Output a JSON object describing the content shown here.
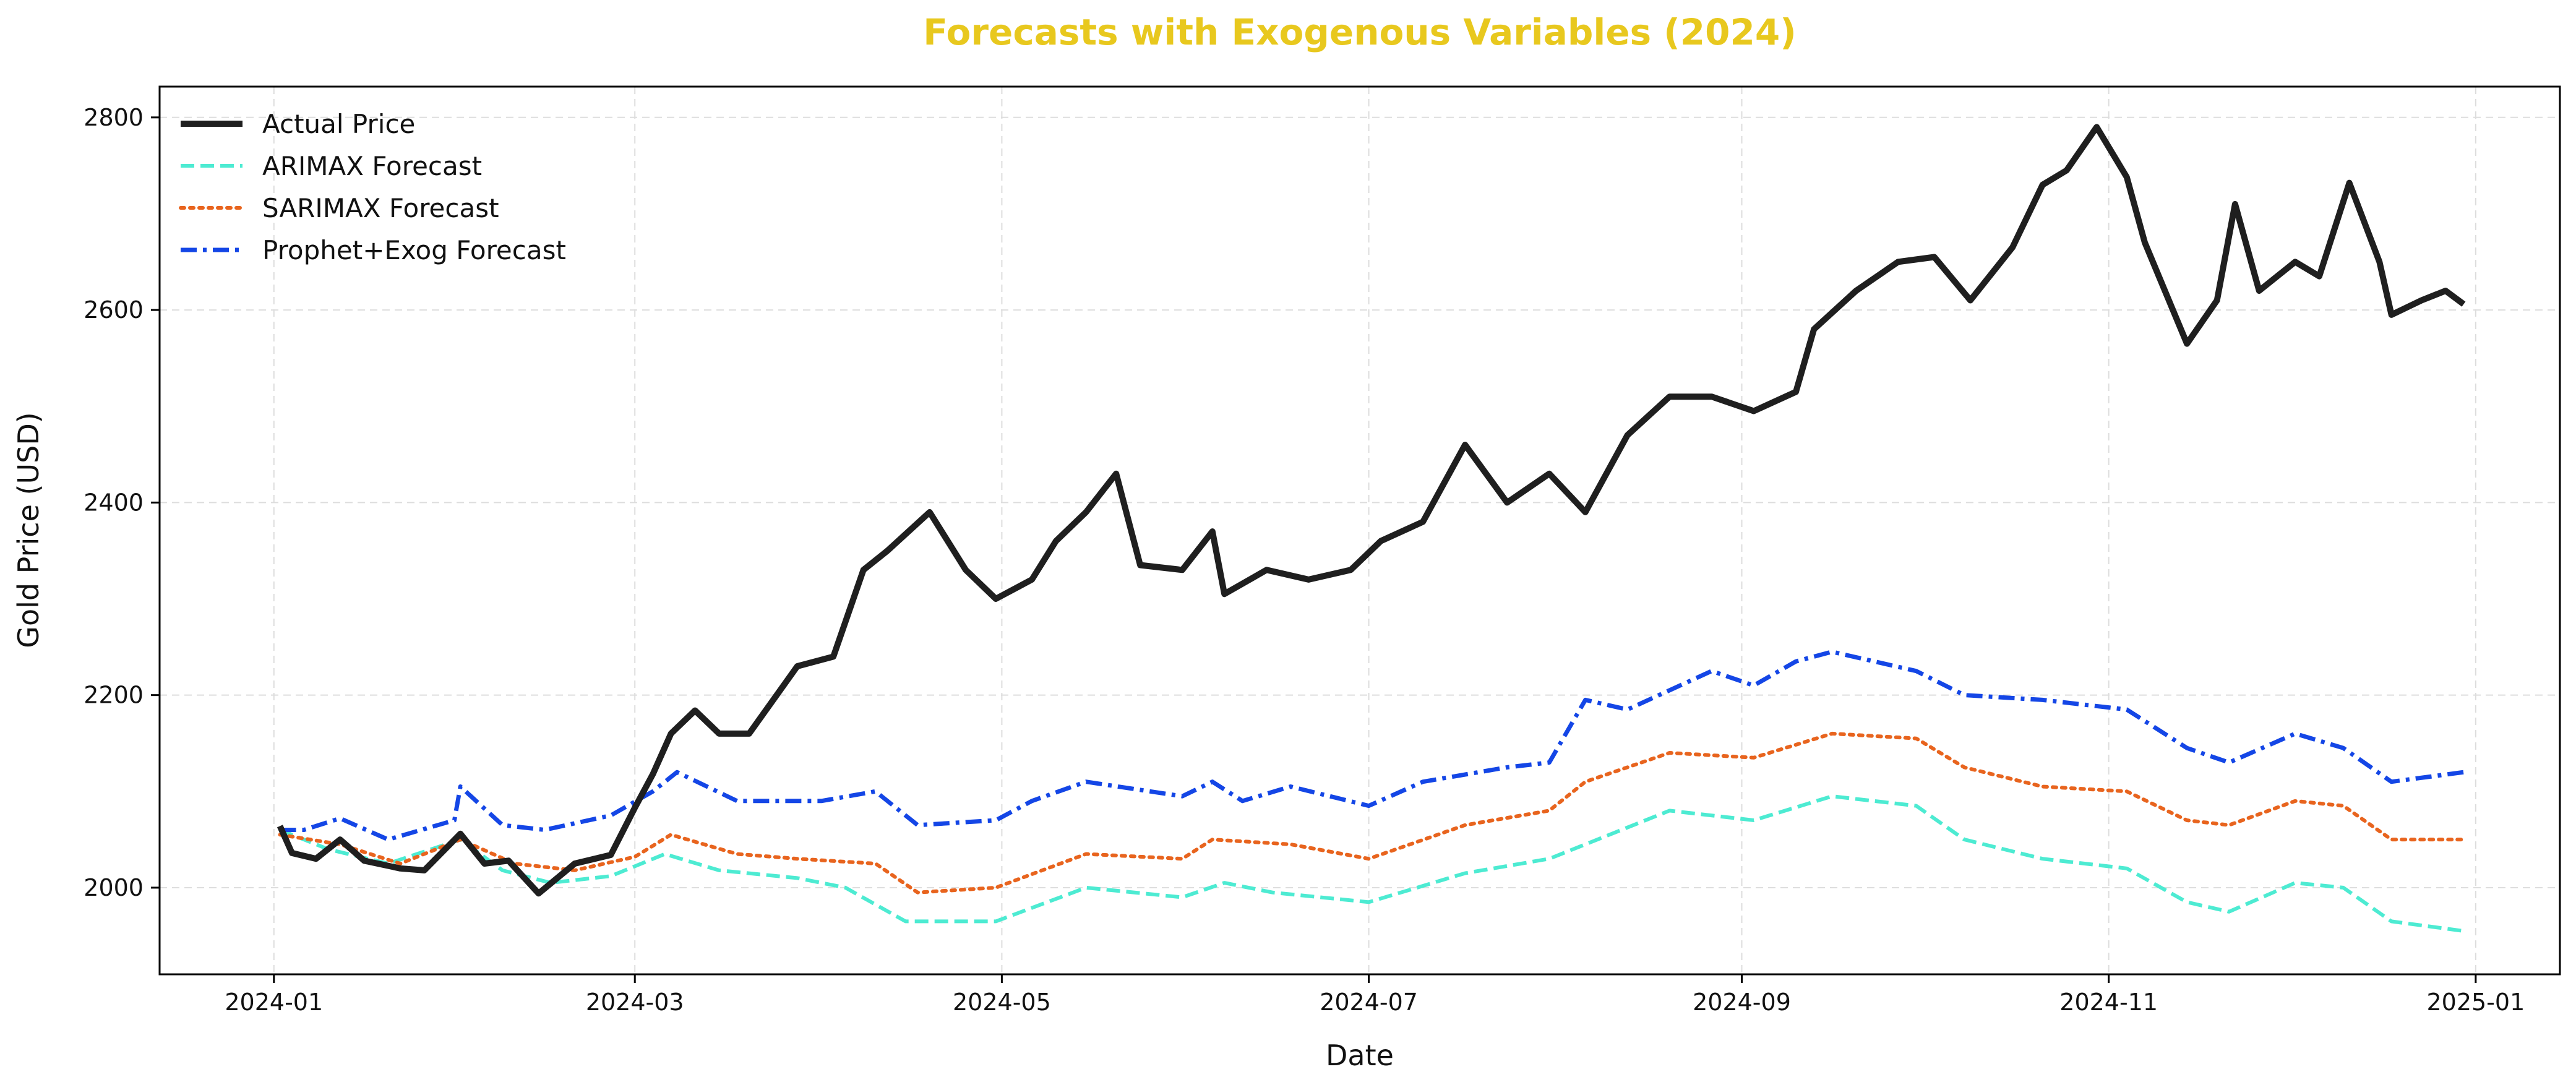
{
  "chart_data": {
    "type": "line",
    "title": "Forecasts with Exogenous Variables (2024)",
    "title_color": "#E8C81E",
    "xlabel": "Date",
    "ylabel": "Gold Price (USD)",
    "x_ticks": [
      "2024-01",
      "2024-03",
      "2024-05",
      "2024-07",
      "2024-09",
      "2024-11",
      "2025-01"
    ],
    "x_range": [
      "2023-12-13",
      "2025-01-15"
    ],
    "y_ticks": [
      2000,
      2200,
      2400,
      2600,
      2800
    ],
    "ylim": [
      1910,
      2832
    ],
    "grid": true,
    "legend_position": "top-left",
    "series": [
      {
        "name": "Actual Price",
        "color": "#1F1F1F",
        "style": "solid",
        "points": [
          [
            "2024-01-02",
            2064
          ],
          [
            "2024-01-04",
            2036
          ],
          [
            "2024-01-08",
            2030
          ],
          [
            "2024-01-12",
            2050
          ],
          [
            "2024-01-16",
            2028
          ],
          [
            "2024-01-22",
            2020
          ],
          [
            "2024-01-26",
            2018
          ],
          [
            "2024-02-01",
            2056
          ],
          [
            "2024-02-05",
            2025
          ],
          [
            "2024-02-09",
            2028
          ],
          [
            "2024-02-14",
            1994
          ],
          [
            "2024-02-20",
            2025
          ],
          [
            "2024-02-26",
            2034
          ],
          [
            "2024-03-01",
            2083
          ],
          [
            "2024-03-04",
            2118
          ],
          [
            "2024-03-07",
            2160
          ],
          [
            "2024-03-11",
            2184
          ],
          [
            "2024-03-15",
            2160
          ],
          [
            "2024-03-20",
            2160
          ],
          [
            "2024-03-28",
            2230
          ],
          [
            "2024-04-03",
            2240
          ],
          [
            "2024-04-08",
            2330
          ],
          [
            "2024-04-12",
            2350
          ],
          [
            "2024-04-19",
            2390
          ],
          [
            "2024-04-25",
            2330
          ],
          [
            "2024-04-30",
            2300
          ],
          [
            "2024-05-06",
            2320
          ],
          [
            "2024-05-10",
            2360
          ],
          [
            "2024-05-15",
            2390
          ],
          [
            "2024-05-20",
            2430
          ],
          [
            "2024-05-24",
            2335
          ],
          [
            "2024-05-31",
            2330
          ],
          [
            "2024-06-05",
            2370
          ],
          [
            "2024-06-07",
            2305
          ],
          [
            "2024-06-14",
            2330
          ],
          [
            "2024-06-21",
            2320
          ],
          [
            "2024-06-28",
            2330
          ],
          [
            "2024-07-03",
            2360
          ],
          [
            "2024-07-10",
            2380
          ],
          [
            "2024-07-17",
            2460
          ],
          [
            "2024-07-24",
            2400
          ],
          [
            "2024-07-31",
            2430
          ],
          [
            "2024-08-06",
            2390
          ],
          [
            "2024-08-13",
            2470
          ],
          [
            "2024-08-20",
            2510
          ],
          [
            "2024-08-27",
            2510
          ],
          [
            "2024-09-03",
            2495
          ],
          [
            "2024-09-10",
            2515
          ],
          [
            "2024-09-13",
            2580
          ],
          [
            "2024-09-20",
            2620
          ],
          [
            "2024-09-27",
            2650
          ],
          [
            "2024-10-03",
            2655
          ],
          [
            "2024-10-09",
            2610
          ],
          [
            "2024-10-16",
            2665
          ],
          [
            "2024-10-21",
            2730
          ],
          [
            "2024-10-25",
            2745
          ],
          [
            "2024-10-30",
            2790
          ],
          [
            "2024-11-04",
            2738
          ],
          [
            "2024-11-07",
            2670
          ],
          [
            "2024-11-14",
            2565
          ],
          [
            "2024-11-19",
            2610
          ],
          [
            "2024-11-22",
            2710
          ],
          [
            "2024-11-26",
            2620
          ],
          [
            "2024-12-02",
            2650
          ],
          [
            "2024-12-06",
            2635
          ],
          [
            "2024-12-11",
            2732
          ],
          [
            "2024-12-16",
            2650
          ],
          [
            "2024-12-18",
            2595
          ],
          [
            "2024-12-23",
            2610
          ],
          [
            "2024-12-27",
            2620
          ],
          [
            "2024-12-30",
            2606
          ]
        ]
      },
      {
        "name": "ARIMAX Forecast",
        "color": "#4DEBD2",
        "style": "dashed",
        "points": [
          [
            "2024-01-02",
            2060
          ],
          [
            "2024-01-10",
            2040
          ],
          [
            "2024-01-20",
            2025
          ],
          [
            "2024-02-01",
            2050
          ],
          [
            "2024-02-08",
            2018
          ],
          [
            "2024-02-16",
            2005
          ],
          [
            "2024-02-26",
            2012
          ],
          [
            "2024-03-06",
            2035
          ],
          [
            "2024-03-15",
            2018
          ],
          [
            "2024-03-28",
            2010
          ],
          [
            "2024-04-05",
            2000
          ],
          [
            "2024-04-15",
            1965
          ],
          [
            "2024-04-30",
            1965
          ],
          [
            "2024-05-15",
            2000
          ],
          [
            "2024-05-31",
            1990
          ],
          [
            "2024-06-07",
            2005
          ],
          [
            "2024-06-15",
            1995
          ],
          [
            "2024-07-01",
            1985
          ],
          [
            "2024-07-17",
            2015
          ],
          [
            "2024-07-31",
            2030
          ],
          [
            "2024-08-06",
            2045
          ],
          [
            "2024-08-20",
            2080
          ],
          [
            "2024-09-03",
            2070
          ],
          [
            "2024-09-16",
            2095
          ],
          [
            "2024-09-30",
            2085
          ],
          [
            "2024-10-08",
            2050
          ],
          [
            "2024-10-21",
            2030
          ],
          [
            "2024-11-04",
            2020
          ],
          [
            "2024-11-14",
            1985
          ],
          [
            "2024-11-21",
            1975
          ],
          [
            "2024-12-02",
            2005
          ],
          [
            "2024-12-10",
            2000
          ],
          [
            "2024-12-18",
            1965
          ],
          [
            "2024-12-30",
            1955
          ]
        ]
      },
      {
        "name": "SARIMAX Forecast",
        "color": "#E8641E",
        "style": "dotted",
        "points": [
          [
            "2024-01-02",
            2055
          ],
          [
            "2024-01-12",
            2045
          ],
          [
            "2024-01-22",
            2025
          ],
          [
            "2024-02-01",
            2050
          ],
          [
            "2024-02-10",
            2025
          ],
          [
            "2024-02-20",
            2018
          ],
          [
            "2024-03-01",
            2032
          ],
          [
            "2024-03-07",
            2055
          ],
          [
            "2024-03-18",
            2035
          ],
          [
            "2024-03-28",
            2030
          ],
          [
            "2024-04-10",
            2025
          ],
          [
            "2024-04-17",
            1995
          ],
          [
            "2024-04-30",
            2000
          ],
          [
            "2024-05-15",
            2035
          ],
          [
            "2024-05-31",
            2030
          ],
          [
            "2024-06-05",
            2050
          ],
          [
            "2024-06-18",
            2045
          ],
          [
            "2024-07-01",
            2030
          ],
          [
            "2024-07-17",
            2065
          ],
          [
            "2024-07-31",
            2080
          ],
          [
            "2024-08-06",
            2110
          ],
          [
            "2024-08-20",
            2140
          ],
          [
            "2024-09-03",
            2135
          ],
          [
            "2024-09-16",
            2160
          ],
          [
            "2024-09-30",
            2155
          ],
          [
            "2024-10-08",
            2125
          ],
          [
            "2024-10-21",
            2105
          ],
          [
            "2024-11-04",
            2100
          ],
          [
            "2024-11-14",
            2070
          ],
          [
            "2024-11-21",
            2065
          ],
          [
            "2024-12-02",
            2090
          ],
          [
            "2024-12-10",
            2085
          ],
          [
            "2024-12-18",
            2050
          ],
          [
            "2024-12-30",
            2050
          ]
        ]
      },
      {
        "name": "Prophet+Exog Forecast",
        "color": "#1446E6",
        "style": "dashdot",
        "points": [
          [
            "2024-01-02",
            2060
          ],
          [
            "2024-01-06",
            2060
          ],
          [
            "2024-01-12",
            2072
          ],
          [
            "2024-01-20",
            2050
          ],
          [
            "2024-01-31",
            2070
          ],
          [
            "2024-02-01",
            2105
          ],
          [
            "2024-02-08",
            2065
          ],
          [
            "2024-02-15",
            2060
          ],
          [
            "2024-02-26",
            2075
          ],
          [
            "2024-03-04",
            2100
          ],
          [
            "2024-03-08",
            2120
          ],
          [
            "2024-03-18",
            2090
          ],
          [
            "2024-04-01",
            2090
          ],
          [
            "2024-04-10",
            2100
          ],
          [
            "2024-04-17",
            2065
          ],
          [
            "2024-04-30",
            2070
          ],
          [
            "2024-05-06",
            2090
          ],
          [
            "2024-05-15",
            2110
          ],
          [
            "2024-05-31",
            2095
          ],
          [
            "2024-06-05",
            2110
          ],
          [
            "2024-06-10",
            2090
          ],
          [
            "2024-06-18",
            2105
          ],
          [
            "2024-07-01",
            2085
          ],
          [
            "2024-07-10",
            2110
          ],
          [
            "2024-07-24",
            2125
          ],
          [
            "2024-07-31",
            2130
          ],
          [
            "2024-08-06",
            2195
          ],
          [
            "2024-08-13",
            2185
          ],
          [
            "2024-08-27",
            2225
          ],
          [
            "2024-09-03",
            2210
          ],
          [
            "2024-09-10",
            2235
          ],
          [
            "2024-09-16",
            2245
          ],
          [
            "2024-09-30",
            2225
          ],
          [
            "2024-10-08",
            2200
          ],
          [
            "2024-10-21",
            2195
          ],
          [
            "2024-11-04",
            2185
          ],
          [
            "2024-11-14",
            2145
          ],
          [
            "2024-11-21",
            2130
          ],
          [
            "2024-12-02",
            2160
          ],
          [
            "2024-12-10",
            2145
          ],
          [
            "2024-12-18",
            2110
          ],
          [
            "2024-12-30",
            2120
          ]
        ]
      }
    ]
  }
}
